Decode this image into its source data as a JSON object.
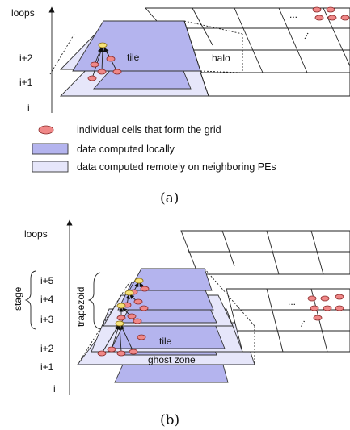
{
  "figure_a": {
    "axis_label": "loops",
    "levels": [
      "i+2",
      "i+1",
      "i"
    ],
    "tile_label": "tile",
    "halo_label": "halo",
    "caption": "(a)"
  },
  "legend": {
    "cell_text": "individual cells that form the grid",
    "local_text": "data computed locally",
    "remote_text": "data computed remotely on neighboring PEs",
    "cell_color": "#f08888",
    "local_color": "#b4b4ee",
    "remote_color": "#e6e6fa"
  },
  "figure_b": {
    "axis_label": "loops",
    "levels": [
      "i+5",
      "i+4",
      "i+3",
      "i+2",
      "i+1",
      "i"
    ],
    "stage_label": "stage",
    "trapezoid_label": "trapezoid",
    "tile_label": "tile",
    "ghost_label": "ghost zone",
    "caption": "(b)"
  },
  "ellipsis": "..."
}
